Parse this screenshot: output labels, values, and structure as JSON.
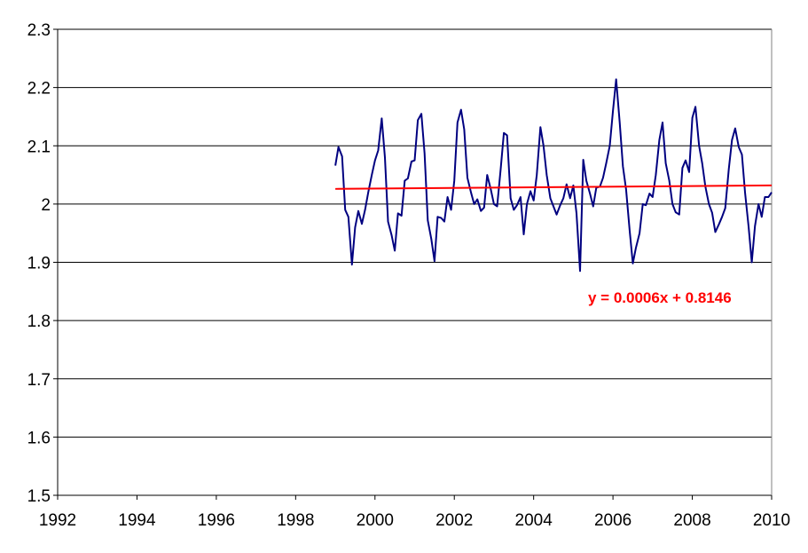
{
  "chart_data": {
    "type": "line",
    "xlim": [
      1992,
      2010
    ],
    "ylim": [
      1.5,
      2.3
    ],
    "x_ticks": [
      1992,
      1994,
      1996,
      1998,
      2000,
      2002,
      2004,
      2006,
      2008,
      2010
    ],
    "x_tick_labels": [
      "1992",
      "1994",
      "1996",
      "1998",
      "2000",
      "2002",
      "2004",
      "2006",
      "2008",
      "2010"
    ],
    "y_ticks": [
      1.5,
      1.6,
      1.7,
      1.8,
      1.9,
      2.0,
      2.1,
      2.2,
      2.3
    ],
    "y_tick_labels": [
      "1.5",
      "1.6",
      "1.7",
      "1.8",
      "1.9",
      "2",
      "2.1",
      "2.2",
      "2.3"
    ],
    "grid": "horizontal",
    "legend": "none",
    "series": [
      {
        "color": "#000080",
        "points": [
          [
            1999.0,
            2.066
          ],
          [
            1999.08,
            2.098
          ],
          [
            1999.17,
            2.082
          ],
          [
            1999.25,
            1.99
          ],
          [
            1999.33,
            1.978
          ],
          [
            1999.42,
            1.896
          ],
          [
            1999.5,
            1.96
          ],
          [
            1999.58,
            1.988
          ],
          [
            1999.67,
            1.966
          ],
          [
            1999.75,
            1.99
          ],
          [
            1999.83,
            2.02
          ],
          [
            1999.92,
            2.05
          ],
          [
            2000.0,
            2.075
          ],
          [
            2000.08,
            2.092
          ],
          [
            2000.17,
            2.147
          ],
          [
            2000.25,
            2.08
          ],
          [
            2000.33,
            1.97
          ],
          [
            2000.42,
            1.946
          ],
          [
            2000.5,
            1.92
          ],
          [
            2000.58,
            1.984
          ],
          [
            2000.67,
            1.98
          ],
          [
            2000.75,
            2.04
          ],
          [
            2000.83,
            2.044
          ],
          [
            2000.92,
            2.073
          ],
          [
            2001.0,
            2.075
          ],
          [
            2001.08,
            2.144
          ],
          [
            2001.17,
            2.155
          ],
          [
            2001.25,
            2.087
          ],
          [
            2001.33,
            1.972
          ],
          [
            2001.42,
            1.94
          ],
          [
            2001.5,
            1.902
          ],
          [
            2001.58,
            1.978
          ],
          [
            2001.67,
            1.976
          ],
          [
            2001.75,
            1.97
          ],
          [
            2001.83,
            2.012
          ],
          [
            2001.92,
            1.99
          ],
          [
            2002.0,
            2.04
          ],
          [
            2002.08,
            2.14
          ],
          [
            2002.17,
            2.162
          ],
          [
            2002.25,
            2.128
          ],
          [
            2002.33,
            2.045
          ],
          [
            2002.42,
            2.02
          ],
          [
            2002.5,
            2.0
          ],
          [
            2002.58,
            2.008
          ],
          [
            2002.67,
            1.988
          ],
          [
            2002.75,
            1.994
          ],
          [
            2002.83,
            2.05
          ],
          [
            2002.92,
            2.025
          ],
          [
            2003.0,
            2.0
          ],
          [
            2003.08,
            1.996
          ],
          [
            2003.17,
            2.06
          ],
          [
            2003.25,
            2.122
          ],
          [
            2003.33,
            2.118
          ],
          [
            2003.42,
            2.01
          ],
          [
            2003.5,
            1.99
          ],
          [
            2003.58,
            1.998
          ],
          [
            2003.67,
            2.012
          ],
          [
            2003.75,
            1.948
          ],
          [
            2003.83,
            2.0
          ],
          [
            2003.92,
            2.022
          ],
          [
            2004.0,
            2.006
          ],
          [
            2004.08,
            2.05
          ],
          [
            2004.17,
            2.132
          ],
          [
            2004.25,
            2.1
          ],
          [
            2004.33,
            2.05
          ],
          [
            2004.42,
            2.01
          ],
          [
            2004.5,
            1.996
          ],
          [
            2004.58,
            1.982
          ],
          [
            2004.67,
            1.998
          ],
          [
            2004.75,
            2.01
          ],
          [
            2004.83,
            2.034
          ],
          [
            2004.92,
            2.01
          ],
          [
            2005.0,
            2.032
          ],
          [
            2005.08,
            1.984
          ],
          [
            2005.17,
            1.885
          ],
          [
            2005.25,
            2.076
          ],
          [
            2005.33,
            2.04
          ],
          [
            2005.42,
            2.018
          ],
          [
            2005.5,
            1.996
          ],
          [
            2005.58,
            2.028
          ],
          [
            2005.67,
            2.03
          ],
          [
            2005.75,
            2.045
          ],
          [
            2005.83,
            2.07
          ],
          [
            2005.92,
            2.1
          ],
          [
            2006.0,
            2.16
          ],
          [
            2006.08,
            2.214
          ],
          [
            2006.17,
            2.14
          ],
          [
            2006.25,
            2.065
          ],
          [
            2006.33,
            2.025
          ],
          [
            2006.42,
            1.955
          ],
          [
            2006.5,
            1.898
          ],
          [
            2006.58,
            1.925
          ],
          [
            2006.67,
            1.95
          ],
          [
            2006.75,
            2.0
          ],
          [
            2006.83,
            1.998
          ],
          [
            2006.92,
            2.018
          ],
          [
            2007.0,
            2.012
          ],
          [
            2007.08,
            2.05
          ],
          [
            2007.17,
            2.11
          ],
          [
            2007.25,
            2.14
          ],
          [
            2007.33,
            2.07
          ],
          [
            2007.42,
            2.04
          ],
          [
            2007.5,
            2.0
          ],
          [
            2007.58,
            1.986
          ],
          [
            2007.67,
            1.982
          ],
          [
            2007.75,
            2.062
          ],
          [
            2007.83,
            2.075
          ],
          [
            2007.92,
            2.055
          ],
          [
            2008.0,
            2.148
          ],
          [
            2008.08,
            2.167
          ],
          [
            2008.17,
            2.1
          ],
          [
            2008.25,
            2.07
          ],
          [
            2008.33,
            2.03
          ],
          [
            2008.42,
            2.0
          ],
          [
            2008.5,
            1.985
          ],
          [
            2008.58,
            1.952
          ],
          [
            2008.67,
            1.965
          ],
          [
            2008.75,
            1.978
          ],
          [
            2008.83,
            1.993
          ],
          [
            2008.92,
            2.06
          ],
          [
            2009.0,
            2.11
          ],
          [
            2009.08,
            2.13
          ],
          [
            2009.17,
            2.098
          ],
          [
            2009.25,
            2.085
          ],
          [
            2009.33,
            2.02
          ],
          [
            2009.42,
            1.96
          ],
          [
            2009.5,
            1.9
          ],
          [
            2009.58,
            1.962
          ],
          [
            2009.67,
            2.0
          ],
          [
            2009.75,
            1.978
          ],
          [
            2009.83,
            2.012
          ],
          [
            2009.92,
            2.012
          ],
          [
            2010.0,
            2.02
          ]
        ]
      }
    ],
    "trendline": {
      "color": "#ff0000",
      "x_range": [
        1999.0,
        2010.0
      ],
      "y_range": [
        2.026,
        2.032
      ],
      "equation": "y = 0.0006x + 0.8146"
    }
  }
}
